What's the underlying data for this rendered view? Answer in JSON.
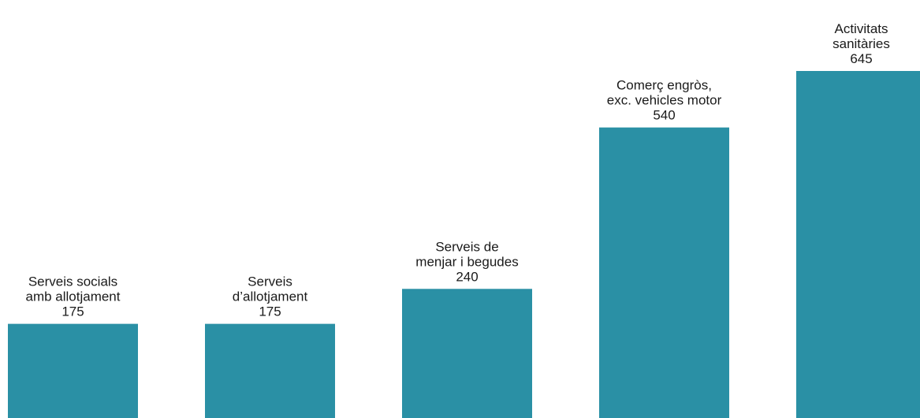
{
  "chart_data": {
    "type": "bar",
    "categories": [
      [
        "Serveis socials",
        "amb allotjament"
      ],
      [
        "Serveis",
        "d’allotjament"
      ],
      [
        "Serveis de",
        "menjar i begudes"
      ],
      [
        "Comerç engròs,",
        "exc. vehicles motor"
      ],
      [
        "Activitats",
        "sanitàries"
      ]
    ],
    "values": [
      175,
      175,
      240,
      540,
      645
    ],
    "value_labels": [
      "175",
      "175",
      "240",
      "540",
      "645"
    ],
    "title": "",
    "xlabel": "",
    "ylabel": "",
    "ylim": [
      0,
      645
    ],
    "grid": false,
    "bar_color": "#2a90a5"
  }
}
